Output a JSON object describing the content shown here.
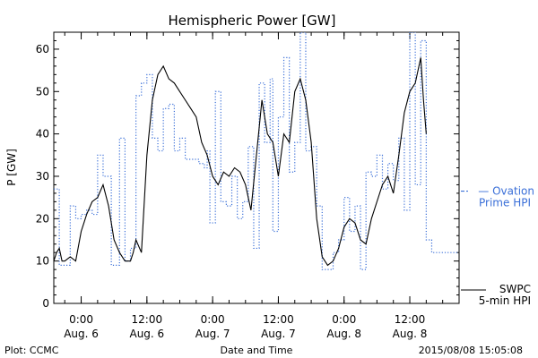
{
  "chart_data": {
    "type": "line",
    "title": "Hemispheric Power [GW]",
    "ylabel": "P [GW]",
    "xlabel": "Date and Time",
    "ylim": [
      0,
      64
    ],
    "yticks": [
      0,
      10,
      20,
      30,
      40,
      50,
      60
    ],
    "xlim": [
      "2015-08-05 19:00",
      "2015-08-08 21:00"
    ],
    "xticks": [
      {
        "at": "2015-08-06 00:00",
        "time": "0:00",
        "date": "Aug. 6"
      },
      {
        "at": "2015-08-06 12:00",
        "time": "12:00",
        "date": "Aug. 6"
      },
      {
        "at": "2015-08-07 00:00",
        "time": "0:00",
        "date": "Aug. 7"
      },
      {
        "at": "2015-08-07 12:00",
        "time": "12:00",
        "date": "Aug. 7"
      },
      {
        "at": "2015-08-08 00:00",
        "time": "0:00",
        "date": "Aug. 8"
      },
      {
        "at": "2015-08-08 12:00",
        "time": "12:00",
        "date": "Aug. 8"
      }
    ],
    "grid": false,
    "legend_position": "right",
    "footer_left": "Plot: CCMC",
    "footer_right": "2015/08/08 15:05:08",
    "series": [
      {
        "name": "Ovation Prime HPI",
        "legend_line1": "Ovation",
        "legend_line2": "Prime HPI",
        "style": "dotted-step",
        "color": "#3a6fd8",
        "points": [
          [
            "2015-08-05 19:00",
            27
          ],
          [
            "2015-08-05 20:00",
            9
          ],
          [
            "2015-08-05 22:00",
            23
          ],
          [
            "2015-08-05 23:00",
            20
          ],
          [
            "2015-08-06 00:00",
            21
          ],
          [
            "2015-08-06 01:00",
            22
          ],
          [
            "2015-08-06 02:00",
            21
          ],
          [
            "2015-08-06 03:00",
            35
          ],
          [
            "2015-08-06 04:00",
            30
          ],
          [
            "2015-08-06 05:30",
            9
          ],
          [
            "2015-08-06 07:00",
            39
          ],
          [
            "2015-08-06 08:00",
            10
          ],
          [
            "2015-08-06 09:00",
            13
          ],
          [
            "2015-08-06 10:00",
            49
          ],
          [
            "2015-08-06 11:00",
            52
          ],
          [
            "2015-08-06 12:00",
            54
          ],
          [
            "2015-08-06 13:00",
            39
          ],
          [
            "2015-08-06 14:00",
            36
          ],
          [
            "2015-08-06 15:00",
            46
          ],
          [
            "2015-08-06 16:00",
            47
          ],
          [
            "2015-08-06 17:00",
            36
          ],
          [
            "2015-08-06 18:00",
            39
          ],
          [
            "2015-08-06 19:00",
            34
          ],
          [
            "2015-08-06 20:00",
            34
          ],
          [
            "2015-08-06 21:30",
            33
          ],
          [
            "2015-08-06 22:30",
            32
          ],
          [
            "2015-08-06 23:00",
            36
          ],
          [
            "2015-08-06 23:30",
            19
          ],
          [
            "2015-08-07 00:30",
            50
          ],
          [
            "2015-08-07 01:30",
            24
          ],
          [
            "2015-08-07 02:30",
            23
          ],
          [
            "2015-08-07 03:30",
            30
          ],
          [
            "2015-08-07 04:30",
            20
          ],
          [
            "2015-08-07 05:30",
            24
          ],
          [
            "2015-08-07 06:30",
            37
          ],
          [
            "2015-08-07 07:30",
            13
          ],
          [
            "2015-08-07 08:30",
            52
          ],
          [
            "2015-08-07 09:30",
            38
          ],
          [
            "2015-08-07 10:30",
            53
          ],
          [
            "2015-08-07 11:00",
            17
          ],
          [
            "2015-08-07 12:00",
            44
          ],
          [
            "2015-08-07 13:00",
            58
          ],
          [
            "2015-08-07 14:00",
            31
          ],
          [
            "2015-08-07 15:00",
            38
          ],
          [
            "2015-08-07 16:00",
            64
          ],
          [
            "2015-08-07 17:00",
            36
          ],
          [
            "2015-08-07 18:00",
            37
          ],
          [
            "2015-08-07 19:00",
            23
          ],
          [
            "2015-08-07 20:00",
            8
          ],
          [
            "2015-08-07 22:00",
            12
          ],
          [
            "2015-08-07 23:00",
            15
          ],
          [
            "2015-08-08 00:00",
            25
          ],
          [
            "2015-08-08 01:00",
            17
          ],
          [
            "2015-08-08 02:00",
            23
          ],
          [
            "2015-08-08 03:00",
            8
          ],
          [
            "2015-08-08 04:00",
            31
          ],
          [
            "2015-08-08 05:00",
            30
          ],
          [
            "2015-08-08 06:00",
            35
          ],
          [
            "2015-08-08 07:00",
            27
          ],
          [
            "2015-08-08 08:00",
            33
          ],
          [
            "2015-08-08 09:00",
            29
          ],
          [
            "2015-08-08 10:00",
            39
          ],
          [
            "2015-08-08 11:00",
            22
          ],
          [
            "2015-08-08 12:00",
            64
          ],
          [
            "2015-08-08 13:00",
            28
          ],
          [
            "2015-08-08 14:00",
            62
          ],
          [
            "2015-08-08 15:00",
            15
          ],
          [
            "2015-08-08 16:00",
            12
          ]
        ]
      },
      {
        "name": "SWPC 5-min HPI",
        "legend_line1": "SWPC",
        "legend_line2": "5-min HPI",
        "style": "solid",
        "color": "#000000",
        "points": [
          [
            "2015-08-05 19:00",
            10
          ],
          [
            "2015-08-05 19:30",
            12
          ],
          [
            "2015-08-05 20:00",
            13
          ],
          [
            "2015-08-05 20:30",
            10
          ],
          [
            "2015-08-05 21:00",
            10
          ],
          [
            "2015-08-05 22:00",
            11
          ],
          [
            "2015-08-05 23:00",
            10
          ],
          [
            "2015-08-06 00:00",
            17
          ],
          [
            "2015-08-06 01:00",
            21
          ],
          [
            "2015-08-06 02:00",
            24
          ],
          [
            "2015-08-06 03:00",
            25
          ],
          [
            "2015-08-06 04:00",
            28
          ],
          [
            "2015-08-06 05:00",
            23
          ],
          [
            "2015-08-06 06:00",
            15
          ],
          [
            "2015-08-06 07:00",
            12
          ],
          [
            "2015-08-06 08:00",
            10
          ],
          [
            "2015-08-06 09:00",
            10
          ],
          [
            "2015-08-06 09:30",
            12
          ],
          [
            "2015-08-06 10:00",
            15
          ],
          [
            "2015-08-06 11:00",
            12
          ],
          [
            "2015-08-06 12:00",
            35
          ],
          [
            "2015-08-06 13:00",
            48
          ],
          [
            "2015-08-06 14:00",
            54
          ],
          [
            "2015-08-06 15:00",
            56
          ],
          [
            "2015-08-06 16:00",
            53
          ],
          [
            "2015-08-06 17:00",
            52
          ],
          [
            "2015-08-06 18:00",
            50
          ],
          [
            "2015-08-06 19:00",
            48
          ],
          [
            "2015-08-06 20:00",
            46
          ],
          [
            "2015-08-06 21:00",
            44
          ],
          [
            "2015-08-06 22:00",
            38
          ],
          [
            "2015-08-06 23:00",
            35
          ],
          [
            "2015-08-07 00:00",
            30
          ],
          [
            "2015-08-07 01:00",
            28
          ],
          [
            "2015-08-07 02:00",
            31
          ],
          [
            "2015-08-07 03:00",
            30
          ],
          [
            "2015-08-07 04:00",
            32
          ],
          [
            "2015-08-07 05:00",
            31
          ],
          [
            "2015-08-07 06:00",
            28
          ],
          [
            "2015-08-07 07:00",
            22
          ],
          [
            "2015-08-07 08:00",
            35
          ],
          [
            "2015-08-07 09:00",
            48
          ],
          [
            "2015-08-07 10:00",
            40
          ],
          [
            "2015-08-07 11:00",
            38
          ],
          [
            "2015-08-07 12:00",
            30
          ],
          [
            "2015-08-07 13:00",
            40
          ],
          [
            "2015-08-07 14:00",
            38
          ],
          [
            "2015-08-07 15:00",
            50
          ],
          [
            "2015-08-07 16:00",
            53
          ],
          [
            "2015-08-07 17:00",
            48
          ],
          [
            "2015-08-07 18:00",
            38
          ],
          [
            "2015-08-07 19:00",
            20
          ],
          [
            "2015-08-07 20:00",
            11
          ],
          [
            "2015-08-07 21:00",
            9
          ],
          [
            "2015-08-07 22:00",
            10
          ],
          [
            "2015-08-07 23:00",
            13
          ],
          [
            "2015-08-08 00:00",
            18
          ],
          [
            "2015-08-08 01:00",
            20
          ],
          [
            "2015-08-08 02:00",
            19
          ],
          [
            "2015-08-08 03:00",
            15
          ],
          [
            "2015-08-08 04:00",
            14
          ],
          [
            "2015-08-08 05:00",
            20
          ],
          [
            "2015-08-08 06:00",
            24
          ],
          [
            "2015-08-08 07:00",
            28
          ],
          [
            "2015-08-08 08:00",
            30
          ],
          [
            "2015-08-08 09:00",
            26
          ],
          [
            "2015-08-08 10:00",
            35
          ],
          [
            "2015-08-08 11:00",
            45
          ],
          [
            "2015-08-08 12:00",
            50
          ],
          [
            "2015-08-08 13:00",
            52
          ],
          [
            "2015-08-08 14:00",
            58
          ],
          [
            "2015-08-08 14:30",
            48
          ],
          [
            "2015-08-08 15:00",
            40
          ]
        ]
      }
    ]
  }
}
